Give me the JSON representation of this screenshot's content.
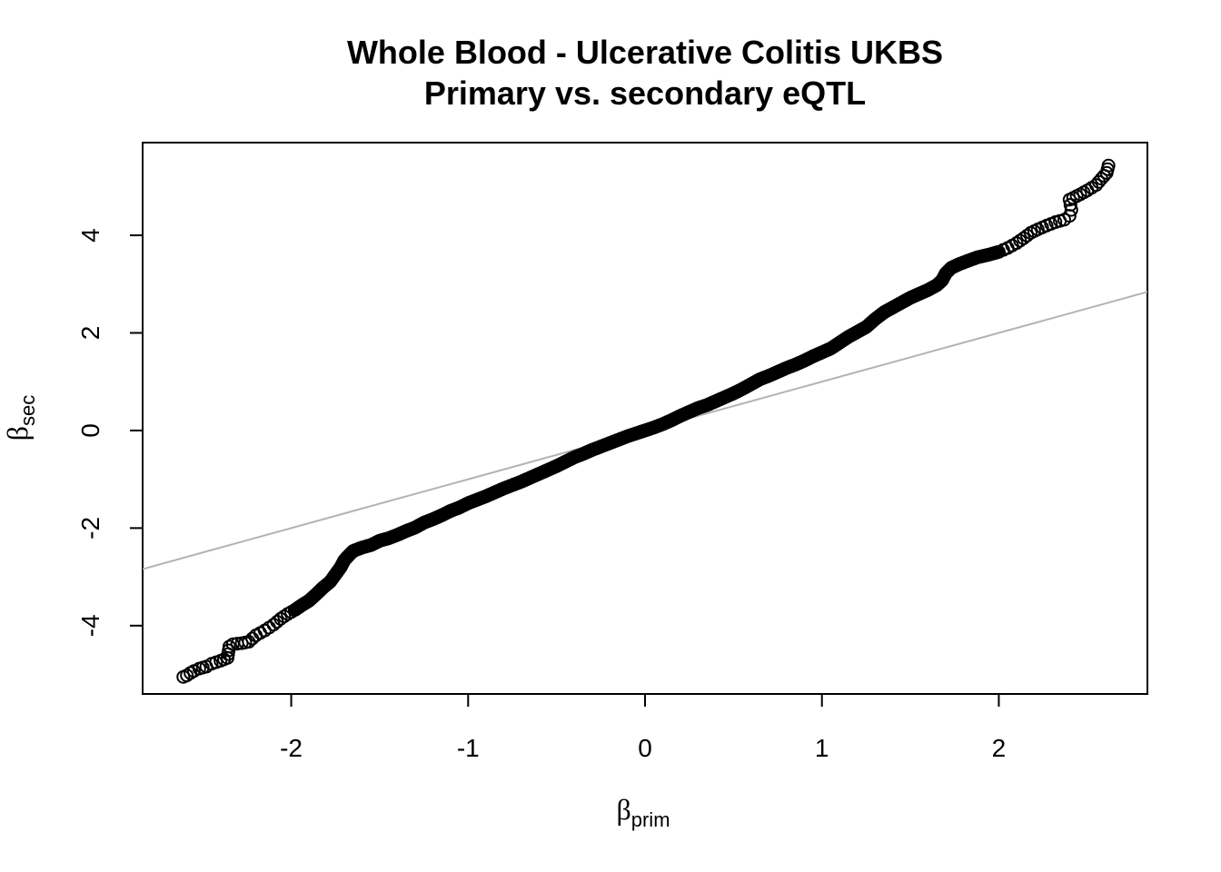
{
  "chart_data": {
    "type": "scatter",
    "title": "Whole Blood - Ulcerative Colitis UKBS",
    "subtitle": "Primary vs. secondary eQTL",
    "xlabel": {
      "symbol": "β",
      "subscript": "prim"
    },
    "ylabel": {
      "symbol": "β",
      "subscript": "sec"
    },
    "xlim": [
      -2.84,
      2.84
    ],
    "ylim": [
      -5.4,
      5.9
    ],
    "xticks": [
      -2,
      -1,
      0,
      1,
      2
    ],
    "yticks": [
      -4,
      -2,
      0,
      2,
      4
    ],
    "xtick_labels": [
      "-2",
      "-1",
      "0",
      "1",
      "2"
    ],
    "ytick_labels": [
      "-4",
      "-2",
      "0",
      "2",
      "4"
    ],
    "grid": false,
    "legend": "none",
    "marker": "open-circle",
    "point_color": "#000000",
    "reference_line": {
      "slope": 1,
      "intercept": 0,
      "color": "#b3b3b3"
    },
    "series": [
      {
        "points": [
          [
            -2.61,
            -5.05
          ],
          [
            -2.59,
            -5.02
          ],
          [
            -2.57,
            -4.97
          ],
          [
            -2.55,
            -4.93
          ],
          [
            -2.52,
            -4.88
          ],
          [
            -2.48,
            -4.84
          ],
          [
            -2.45,
            -4.78
          ],
          [
            -2.4,
            -4.72
          ],
          [
            -2.36,
            -4.66
          ],
          [
            -2.35,
            -4.43
          ],
          [
            -2.33,
            -4.38
          ],
          [
            -2.28,
            -4.36
          ],
          [
            -2.24,
            -4.33
          ],
          [
            -2.2,
            -4.2
          ],
          [
            -2.15,
            -4.1
          ],
          [
            -2.1,
            -3.98
          ],
          [
            -2.06,
            -3.86
          ],
          [
            -2.02,
            -3.76
          ],
          [
            -1.98,
            -3.68
          ],
          [
            -1.94,
            -3.58
          ],
          [
            -1.9,
            -3.49
          ],
          [
            -1.86,
            -3.36
          ],
          [
            -1.82,
            -3.22
          ],
          [
            -1.78,
            -3.1
          ],
          [
            -1.75,
            -2.95
          ],
          [
            -1.72,
            -2.8
          ],
          [
            -1.7,
            -2.66
          ],
          [
            -1.68,
            -2.58
          ],
          [
            -1.65,
            -2.47
          ],
          [
            -1.6,
            -2.4
          ],
          [
            -1.55,
            -2.35
          ],
          [
            -1.5,
            -2.26
          ],
          [
            -1.45,
            -2.21
          ],
          [
            -1.4,
            -2.14
          ],
          [
            -1.35,
            -2.06
          ],
          [
            -1.3,
            -1.99
          ],
          [
            -1.25,
            -1.89
          ],
          [
            -1.2,
            -1.82
          ],
          [
            -1.15,
            -1.74
          ],
          [
            -1.1,
            -1.65
          ],
          [
            -1.05,
            -1.58
          ],
          [
            -1.0,
            -1.49
          ],
          [
            -0.95,
            -1.42
          ],
          [
            -0.9,
            -1.35
          ],
          [
            -0.85,
            -1.27
          ],
          [
            -0.8,
            -1.19
          ],
          [
            -0.75,
            -1.12
          ],
          [
            -0.7,
            -1.05
          ],
          [
            -0.65,
            -0.97
          ],
          [
            -0.6,
            -0.89
          ],
          [
            -0.55,
            -0.81
          ],
          [
            -0.5,
            -0.73
          ],
          [
            -0.45,
            -0.64
          ],
          [
            -0.4,
            -0.55
          ],
          [
            -0.35,
            -0.48
          ],
          [
            -0.3,
            -0.4
          ],
          [
            -0.25,
            -0.33
          ],
          [
            -0.2,
            -0.26
          ],
          [
            -0.15,
            -0.19
          ],
          [
            -0.1,
            -0.12
          ],
          [
            -0.05,
            -0.06
          ],
          [
            0.0,
            0.0
          ],
          [
            0.05,
            0.06
          ],
          [
            0.1,
            0.13
          ],
          [
            0.15,
            0.21
          ],
          [
            0.2,
            0.3
          ],
          [
            0.25,
            0.38
          ],
          [
            0.3,
            0.46
          ],
          [
            0.35,
            0.52
          ],
          [
            0.4,
            0.6
          ],
          [
            0.45,
            0.68
          ],
          [
            0.5,
            0.76
          ],
          [
            0.55,
            0.85
          ],
          [
            0.6,
            0.95
          ],
          [
            0.65,
            1.05
          ],
          [
            0.7,
            1.12
          ],
          [
            0.75,
            1.2
          ],
          [
            0.8,
            1.28
          ],
          [
            0.85,
            1.35
          ],
          [
            0.9,
            1.43
          ],
          [
            0.95,
            1.52
          ],
          [
            1.0,
            1.6
          ],
          [
            1.05,
            1.68
          ],
          [
            1.1,
            1.8
          ],
          [
            1.15,
            1.92
          ],
          [
            1.2,
            2.02
          ],
          [
            1.25,
            2.12
          ],
          [
            1.3,
            2.28
          ],
          [
            1.35,
            2.42
          ],
          [
            1.4,
            2.52
          ],
          [
            1.45,
            2.62
          ],
          [
            1.5,
            2.72
          ],
          [
            1.55,
            2.8
          ],
          [
            1.6,
            2.88
          ],
          [
            1.65,
            2.98
          ],
          [
            1.68,
            3.08
          ],
          [
            1.7,
            3.22
          ],
          [
            1.73,
            3.33
          ],
          [
            1.77,
            3.4
          ],
          [
            1.82,
            3.47
          ],
          [
            1.88,
            3.55
          ],
          [
            1.94,
            3.6
          ],
          [
            2.0,
            3.66
          ],
          [
            2.05,
            3.74
          ],
          [
            2.1,
            3.84
          ],
          [
            2.14,
            3.94
          ],
          [
            2.18,
            4.05
          ],
          [
            2.22,
            4.12
          ],
          [
            2.27,
            4.2
          ],
          [
            2.32,
            4.27
          ],
          [
            2.37,
            4.32
          ],
          [
            2.4,
            4.4
          ],
          [
            2.41,
            4.52
          ],
          [
            2.4,
            4.73
          ],
          [
            2.46,
            4.84
          ],
          [
            2.5,
            4.92
          ],
          [
            2.55,
            5.03
          ],
          [
            2.58,
            5.16
          ],
          [
            2.61,
            5.28
          ],
          [
            2.62,
            5.43
          ]
        ]
      }
    ]
  }
}
